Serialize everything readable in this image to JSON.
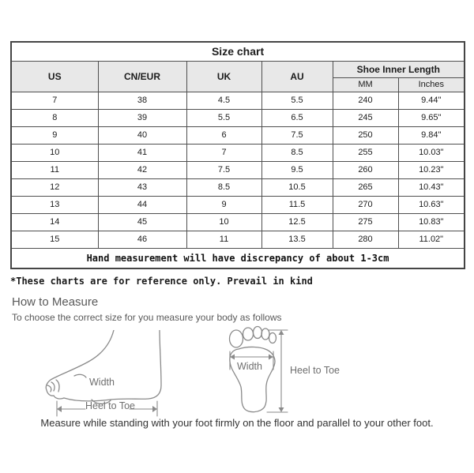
{
  "table": {
    "title": "Size chart",
    "columns": [
      "US",
      "CN/EUR",
      "UK",
      "AU"
    ],
    "group_header": "Shoe Inner Length",
    "sub_columns": [
      "MM",
      "Inches"
    ],
    "rows": [
      [
        "7",
        "38",
        "4.5",
        "5.5",
        "240",
        "9.44\""
      ],
      [
        "8",
        "39",
        "5.5",
        "6.5",
        "245",
        "9.65\""
      ],
      [
        "9",
        "40",
        "6",
        "7.5",
        "250",
        "9.84\""
      ],
      [
        "10",
        "41",
        "7",
        "8.5",
        "255",
        "10.03\""
      ],
      [
        "11",
        "42",
        "7.5",
        "9.5",
        "260",
        "10.23\""
      ],
      [
        "12",
        "43",
        "8.5",
        "10.5",
        "265",
        "10.43\""
      ],
      [
        "13",
        "44",
        "9",
        "11.5",
        "270",
        "10.63\""
      ],
      [
        "14",
        "45",
        "10",
        "12.5",
        "275",
        "10.83\""
      ],
      [
        "15",
        "46",
        "11",
        "13.5",
        "280",
        "11.02\""
      ]
    ],
    "note": "Hand measurement will have discrepancy of about 1-3cm"
  },
  "disclaimer": "*These charts are for reference only. Prevail in kind",
  "how_to_measure": {
    "heading": "How to Measure",
    "subtext": "To choose the correct size for you measure your body as follows"
  },
  "diagrams": {
    "side_view": {
      "width_label": "Width",
      "length_label": "Heel to Toe"
    },
    "footprint": {
      "width_label": "Width",
      "length_label": "Heel to Toe"
    }
  },
  "footer_note": "Measure while standing with your foot firmly on the floor and parallel to your other foot.",
  "colors": {
    "header_bg": "#e8e8e8",
    "table_border": "#4f4f4f",
    "diagram_stroke": "#8a8a8a",
    "muted_text": "#595959",
    "body_text": "#1c1c1c"
  }
}
